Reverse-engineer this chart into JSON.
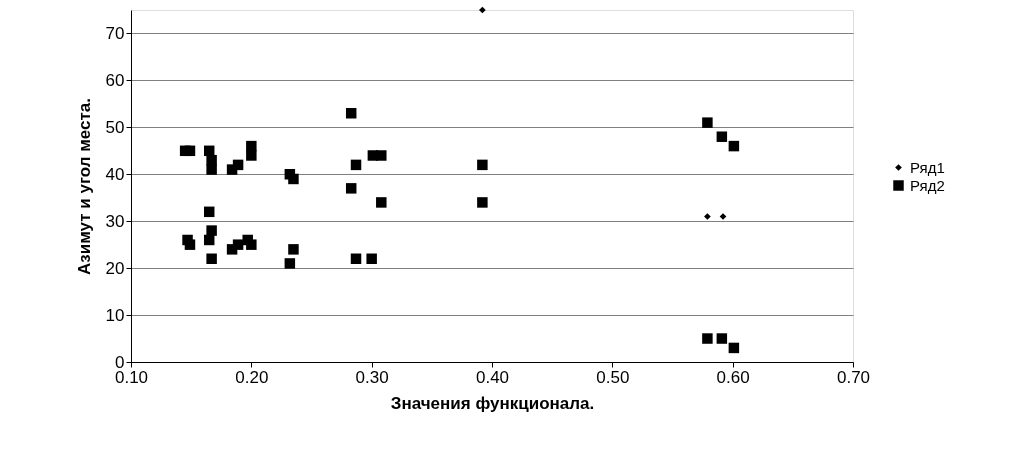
{
  "chart_data": {
    "type": "scatter",
    "xlabel": "Значения функционала.",
    "ylabel": "Азимут и угол места.",
    "xlim": [
      0.1,
      0.7
    ],
    "xticks": [
      {
        "value": 0.1,
        "label": "0.10"
      },
      {
        "value": 0.2,
        "label": "0.20"
      },
      {
        "value": 0.3,
        "label": "0.30"
      },
      {
        "value": 0.4,
        "label": "0.40"
      },
      {
        "value": 0.5,
        "label": "0.50"
      },
      {
        "value": 0.6,
        "label": "0.60"
      },
      {
        "value": 0.7,
        "label": "0.70"
      }
    ],
    "ylim": [
      0,
      75
    ],
    "yticks": [
      0,
      10,
      20,
      30,
      40,
      50,
      60,
      70
    ],
    "grid": "y",
    "legend": "right",
    "series": [
      {
        "name": "Ряд1",
        "color": "#000000",
        "marker": "diamond",
        "x": [
          0.579,
          0.592,
          0.392
        ],
        "values": [
          31,
          31,
          75
        ]
      },
      {
        "name": "Ряд2",
        "color": "#000000",
        "marker": "square",
        "x": [
          0.145,
          0.149,
          0.147,
          0.149,
          0.165,
          0.167,
          0.167,
          0.165,
          0.167,
          0.165,
          0.167,
          0.184,
          0.189,
          0.184,
          0.189,
          0.2,
          0.2,
          0.197,
          0.2,
          0.232,
          0.235,
          0.232,
          0.235,
          0.283,
          0.283,
          0.287,
          0.287,
          0.301,
          0.308,
          0.308,
          0.3,
          0.392,
          0.392,
          0.579,
          0.591,
          0.601,
          0.579,
          0.591,
          0.601
        ],
        "values": [
          45,
          45,
          26,
          25,
          45,
          43,
          41,
          32,
          28,
          26,
          22,
          41,
          42,
          24,
          25,
          46,
          44,
          26,
          25,
          40,
          39,
          21,
          24,
          53,
          37,
          42,
          22,
          44,
          44,
          34,
          22,
          42,
          34,
          51,
          48,
          46,
          5,
          5,
          3
        ]
      }
    ]
  }
}
